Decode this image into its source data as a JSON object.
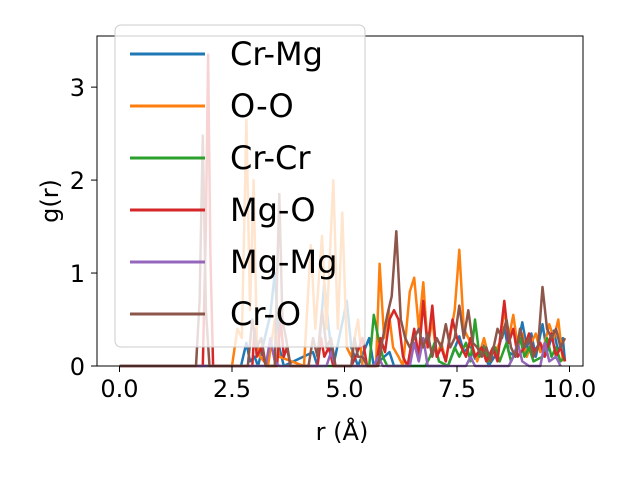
{
  "chart_data": {
    "type": "line",
    "xlabel": "r (Å)",
    "ylabel": "g(r)",
    "xlim": [
      -0.5,
      10.3
    ],
    "ylim": [
      0,
      3.55
    ],
    "xticks": [
      0.0,
      2.5,
      5.0,
      7.5,
      10.0
    ],
    "xtick_labels": [
      "0.0",
      "2.5",
      "5.0",
      "7.5",
      "10.0"
    ],
    "yticks": [
      0,
      1,
      2,
      3
    ],
    "ytick_labels": [
      "0",
      "1",
      "2",
      "3"
    ],
    "grid": false,
    "legend_position": "upper-left",
    "series": [
      {
        "name": "Cr-Mg",
        "color": "#1f77b4",
        "points": [
          [
            0,
            0
          ],
          [
            2.7,
            0
          ],
          [
            2.82,
            0.25
          ],
          [
            2.9,
            0.05
          ],
          [
            3.0,
            0.1
          ],
          [
            3.08,
            0
          ],
          [
            3.35,
            0.55
          ],
          [
            3.45,
            1.0
          ],
          [
            3.55,
            0.2
          ],
          [
            3.65,
            0
          ],
          [
            4.3,
            0.15
          ],
          [
            4.4,
            0
          ],
          [
            4.55,
            0.9
          ],
          [
            4.65,
            0.4
          ],
          [
            4.75,
            0
          ],
          [
            5.05,
            0.7
          ],
          [
            5.15,
            0.2
          ],
          [
            5.3,
            0
          ],
          [
            5.55,
            0.3
          ],
          [
            5.65,
            0
          ],
          [
            6.0,
            0.15
          ],
          [
            6.1,
            0
          ],
          [
            7.3,
            0
          ],
          [
            7.55,
            0.32
          ],
          [
            7.65,
            0.15
          ],
          [
            7.8,
            0.22
          ],
          [
            7.9,
            0.08
          ],
          [
            8.1,
            0.22
          ],
          [
            8.2,
            0
          ],
          [
            8.4,
            0.15
          ],
          [
            8.55,
            0.42
          ],
          [
            8.65,
            0.15
          ],
          [
            8.8,
            0.1
          ],
          [
            8.95,
            0.47
          ],
          [
            9.05,
            0.2
          ],
          [
            9.15,
            0.35
          ],
          [
            9.25,
            0.1
          ],
          [
            9.4,
            0.45
          ],
          [
            9.5,
            0.15
          ],
          [
            9.65,
            0.38
          ],
          [
            9.75,
            0.15
          ],
          [
            9.85,
            0.3
          ],
          [
            9.9,
            0.05
          ]
        ]
      },
      {
        "name": "O-O",
        "color": "#ff7f0e",
        "points": [
          [
            0,
            0
          ],
          [
            2.5,
            0
          ],
          [
            2.62,
            0.4
          ],
          [
            2.72,
            0.3
          ],
          [
            2.82,
            2.65
          ],
          [
            2.9,
            0.6
          ],
          [
            2.98,
            2.0
          ],
          [
            3.05,
            0.3
          ],
          [
            3.12,
            0.1
          ],
          [
            3.3,
            0
          ],
          [
            3.45,
            0.5
          ],
          [
            3.55,
            0.1
          ],
          [
            4.1,
            0
          ],
          [
            4.25,
            1.3
          ],
          [
            4.35,
            0.4
          ],
          [
            4.5,
            1.4
          ],
          [
            4.6,
            0.4
          ],
          [
            4.75,
            2.0
          ],
          [
            4.85,
            0.4
          ],
          [
            4.95,
            1.65
          ],
          [
            5.05,
            0.2
          ],
          [
            5.15,
            0.1
          ],
          [
            5.3,
            0.5
          ],
          [
            5.4,
            0
          ],
          [
            5.7,
            0
          ],
          [
            5.78,
            1.1
          ],
          [
            5.88,
            0.3
          ],
          [
            5.98,
            0.6
          ],
          [
            6.08,
            0.2
          ],
          [
            6.2,
            0.1
          ],
          [
            6.3,
            0
          ],
          [
            6.45,
            0.8
          ],
          [
            6.55,
            0.95
          ],
          [
            6.65,
            0.4
          ],
          [
            6.75,
            0.9
          ],
          [
            6.85,
            0.2
          ],
          [
            6.95,
            0.5
          ],
          [
            7.05,
            0.1
          ],
          [
            7.15,
            0.25
          ],
          [
            7.25,
            0.05
          ],
          [
            7.45,
            0.6
          ],
          [
            7.55,
            1.25
          ],
          [
            7.65,
            0.4
          ],
          [
            7.75,
            0.3
          ],
          [
            7.85,
            0.2
          ],
          [
            7.95,
            0.05
          ],
          [
            8.1,
            0.3
          ],
          [
            8.2,
            0.1
          ],
          [
            8.35,
            0.15
          ],
          [
            8.45,
            0.25
          ],
          [
            8.55,
            0.6
          ],
          [
            8.65,
            0.3
          ],
          [
            8.75,
            0.55
          ],
          [
            8.85,
            0.2
          ],
          [
            8.95,
            0.35
          ],
          [
            9.05,
            0.1
          ],
          [
            9.15,
            0.25
          ],
          [
            9.25,
            0.35
          ],
          [
            9.35,
            0.15
          ],
          [
            9.45,
            0.25
          ],
          [
            9.55,
            0.45
          ],
          [
            9.65,
            0.3
          ],
          [
            9.75,
            0.5
          ],
          [
            9.85,
            0.05
          ]
        ]
      },
      {
        "name": "Cr-Cr",
        "color": "#2ca02c",
        "points": [
          [
            0,
            0
          ],
          [
            5.55,
            0
          ],
          [
            5.65,
            0.55
          ],
          [
            5.75,
            0.3
          ],
          [
            5.85,
            0.1
          ],
          [
            5.95,
            0
          ],
          [
            6.8,
            0
          ],
          [
            6.9,
            0.1
          ],
          [
            7.0,
            0.25
          ],
          [
            7.1,
            0.05
          ],
          [
            7.3,
            0
          ],
          [
            7.45,
            0.2
          ],
          [
            7.55,
            0.1
          ],
          [
            7.7,
            0.25
          ],
          [
            7.8,
            0.05
          ],
          [
            7.9,
            0.5
          ],
          [
            8.0,
            0.1
          ],
          [
            8.1,
            0.2
          ],
          [
            8.2,
            0.05
          ],
          [
            8.35,
            0.2
          ],
          [
            8.45,
            0.05
          ],
          [
            8.6,
            0.25
          ],
          [
            8.7,
            0.05
          ],
          [
            8.8,
            0.15
          ],
          [
            8.9,
            0.3
          ],
          [
            9.0,
            0.1
          ],
          [
            9.1,
            0.2
          ],
          [
            9.2,
            0.05
          ],
          [
            9.4,
            0.1
          ],
          [
            9.5,
            0.3
          ],
          [
            9.6,
            0.1
          ],
          [
            9.7,
            0.2
          ],
          [
            9.8,
            0.05
          ],
          [
            9.9,
            0.1
          ]
        ]
      },
      {
        "name": "Mg-O",
        "color": "#d62728",
        "points": [
          [
            0,
            0
          ],
          [
            1.85,
            0
          ],
          [
            1.92,
            1.5
          ],
          [
            1.97,
            3.35
          ],
          [
            2.02,
            1.2
          ],
          [
            2.08,
            0
          ],
          [
            2.95,
            0
          ],
          [
            3.0,
            0.4
          ],
          [
            3.05,
            0.1
          ],
          [
            3.15,
            0.2
          ],
          [
            3.25,
            0
          ],
          [
            3.5,
            0
          ],
          [
            3.58,
            0.5
          ],
          [
            3.65,
            0.1
          ],
          [
            3.72,
            0.2
          ],
          [
            3.8,
            0
          ],
          [
            4.4,
            0
          ],
          [
            4.48,
            0.3
          ],
          [
            4.55,
            0.1
          ],
          [
            4.65,
            0.2
          ],
          [
            4.75,
            0
          ],
          [
            5.15,
            0
          ],
          [
            5.25,
            0.1
          ],
          [
            5.4,
            0.3
          ],
          [
            5.5,
            0
          ],
          [
            5.7,
            0
          ],
          [
            5.8,
            0.3
          ],
          [
            5.9,
            0.15
          ],
          [
            6.0,
            0.5
          ],
          [
            6.1,
            0.6
          ],
          [
            6.2,
            0.5
          ],
          [
            6.3,
            0.1
          ],
          [
            6.4,
            0
          ],
          [
            6.55,
            0.4
          ],
          [
            6.65,
            0.1
          ],
          [
            6.75,
            0.7
          ],
          [
            6.85,
            0.2
          ],
          [
            6.95,
            0.65
          ],
          [
            7.05,
            0.1
          ],
          [
            7.15,
            0.2
          ],
          [
            7.25,
            0.05
          ],
          [
            7.4,
            0.5
          ],
          [
            7.5,
            0.3
          ],
          [
            7.6,
            0.2
          ],
          [
            7.7,
            0.1
          ],
          [
            7.8,
            0.3
          ],
          [
            7.9,
            0.1
          ],
          [
            8.05,
            0.2
          ],
          [
            8.15,
            0.05
          ],
          [
            8.3,
            0.2
          ],
          [
            8.4,
            0.05
          ],
          [
            8.55,
            0.7
          ],
          [
            8.65,
            0.25
          ],
          [
            8.75,
            0.4
          ],
          [
            8.85,
            0.1
          ],
          [
            9.0,
            0.2
          ],
          [
            9.1,
            0.35
          ],
          [
            9.2,
            0.15
          ],
          [
            9.35,
            0.25
          ],
          [
            9.45,
            0.1
          ],
          [
            9.6,
            0.35
          ],
          [
            9.7,
            0.1
          ],
          [
            9.8,
            0.2
          ],
          [
            9.9,
            0.05
          ]
        ]
      },
      {
        "name": "Mg-Mg",
        "color": "#9467bd",
        "points": [
          [
            0,
            0
          ],
          [
            3.25,
            0
          ],
          [
            3.35,
            0.3
          ],
          [
            3.45,
            0.05
          ],
          [
            3.55,
            0
          ],
          [
            4.6,
            0
          ],
          [
            4.7,
            0.15
          ],
          [
            4.8,
            0
          ],
          [
            5.65,
            0
          ],
          [
            5.75,
            0.1
          ],
          [
            5.85,
            0
          ],
          [
            6.45,
            0
          ],
          [
            6.55,
            0.25
          ],
          [
            6.65,
            0.05
          ],
          [
            6.75,
            0.3
          ],
          [
            6.85,
            0
          ],
          [
            7.7,
            0
          ],
          [
            7.8,
            0.1
          ],
          [
            7.9,
            0
          ],
          [
            8.65,
            0
          ],
          [
            8.75,
            0.1
          ],
          [
            8.85,
            0.25
          ],
          [
            8.95,
            0.05
          ],
          [
            9.1,
            0
          ],
          [
            9.35,
            0
          ],
          [
            9.45,
            0.25
          ],
          [
            9.55,
            0.05
          ],
          [
            9.7,
            0.1
          ],
          [
            9.8,
            0
          ]
        ]
      },
      {
        "name": "Cr-O",
        "color": "#8c564b",
        "points": [
          [
            0,
            0
          ],
          [
            1.7,
            0
          ],
          [
            1.78,
            0.7
          ],
          [
            1.85,
            2.48
          ],
          [
            1.92,
            0.6
          ],
          [
            2.0,
            0
          ],
          [
            2.85,
            0
          ],
          [
            2.95,
            0.5
          ],
          [
            3.05,
            0.2
          ],
          [
            3.15,
            0.3
          ],
          [
            3.25,
            0
          ],
          [
            3.45,
            0
          ],
          [
            3.55,
            1.85
          ],
          [
            3.62,
            0.5
          ],
          [
            3.7,
            0.3
          ],
          [
            3.8,
            0
          ],
          [
            4.2,
            0
          ],
          [
            4.3,
            0.3
          ],
          [
            4.4,
            0.1
          ],
          [
            4.5,
            0.6
          ],
          [
            4.6,
            0.2
          ],
          [
            4.7,
            0.3
          ],
          [
            4.8,
            0
          ],
          [
            5.15,
            0
          ],
          [
            5.22,
            0.3
          ],
          [
            5.3,
            0.1
          ],
          [
            5.4,
            0.1
          ],
          [
            5.5,
            0
          ],
          [
            5.75,
            0
          ],
          [
            5.85,
            0.3
          ],
          [
            5.95,
            0.55
          ],
          [
            6.05,
            0.75
          ],
          [
            6.15,
            1.45
          ],
          [
            6.25,
            0.5
          ],
          [
            6.35,
            0.3
          ],
          [
            6.45,
            0.2
          ],
          [
            6.55,
            0.3
          ],
          [
            6.65,
            0.4
          ],
          [
            6.75,
            0.2
          ],
          [
            6.85,
            0.35
          ],
          [
            6.95,
            0.1
          ],
          [
            7.05,
            0.3
          ],
          [
            7.15,
            0.2
          ],
          [
            7.25,
            0.45
          ],
          [
            7.35,
            0.2
          ],
          [
            7.45,
            0.3
          ],
          [
            7.55,
            0.65
          ],
          [
            7.65,
            0.3
          ],
          [
            7.75,
            0.6
          ],
          [
            7.85,
            0.25
          ],
          [
            7.95,
            0.2
          ],
          [
            8.05,
            0.1
          ],
          [
            8.15,
            0.2
          ],
          [
            8.25,
            0.05
          ],
          [
            8.4,
            0.4
          ],
          [
            8.5,
            0.3
          ],
          [
            8.6,
            0.5
          ],
          [
            8.7,
            0.2
          ],
          [
            8.8,
            0.1
          ],
          [
            8.9,
            0.4
          ],
          [
            9.0,
            0.2
          ],
          [
            9.1,
            0.3
          ],
          [
            9.2,
            0.1
          ],
          [
            9.3,
            0.2
          ],
          [
            9.4,
            0.85
          ],
          [
            9.5,
            0.4
          ],
          [
            9.6,
            0.3
          ],
          [
            9.7,
            0.4
          ],
          [
            9.8,
            0.2
          ],
          [
            9.9,
            0.3
          ]
        ]
      }
    ]
  }
}
